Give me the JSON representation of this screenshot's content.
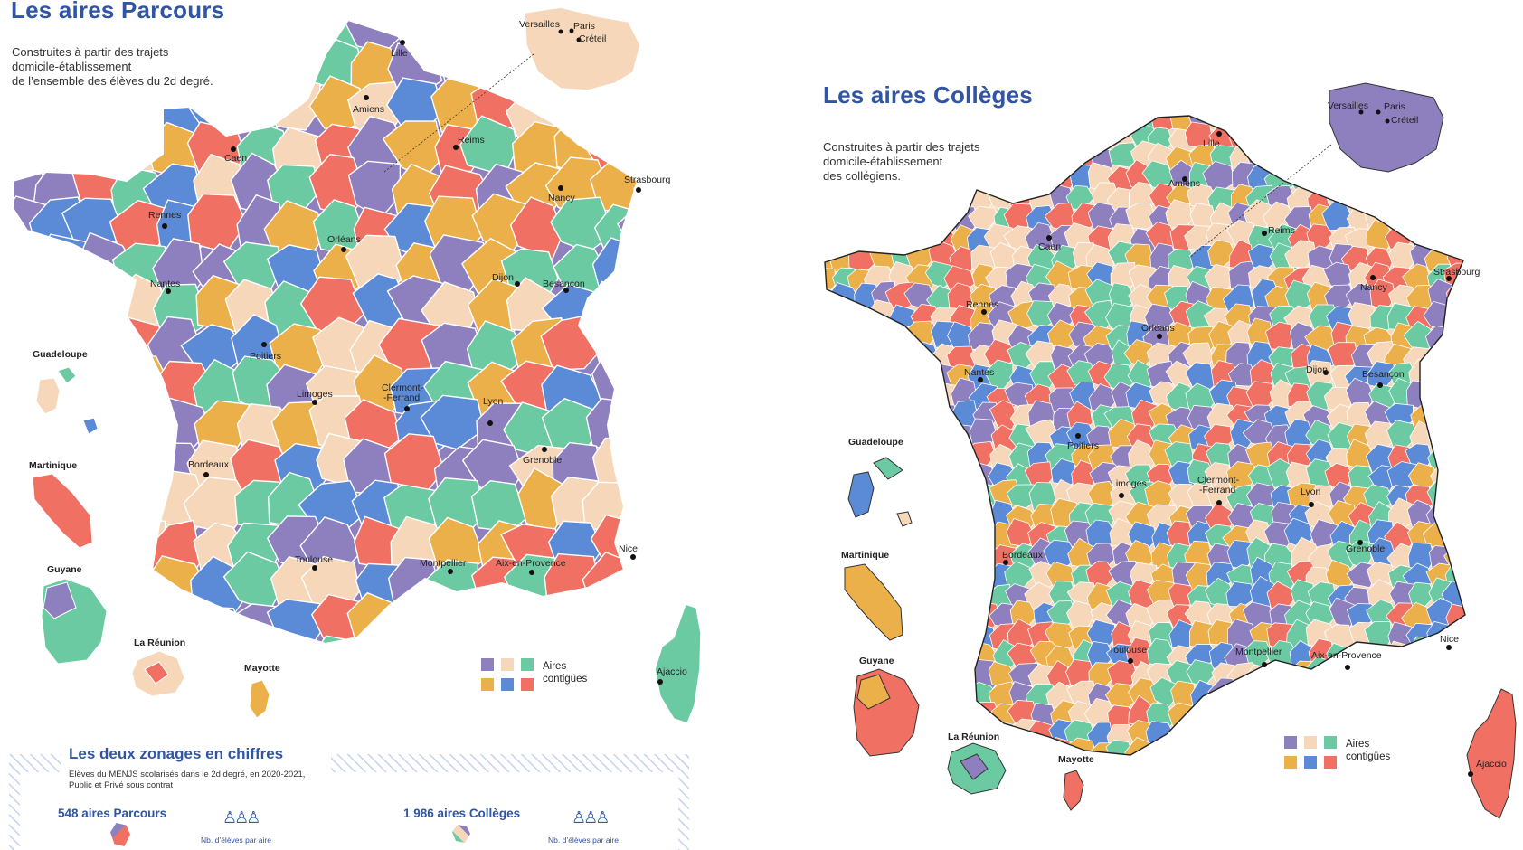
{
  "left": {
    "title": "Les aires Parcours",
    "subtitle": [
      "Construites à partir des trajets",
      "domicile-établissement",
      "de l’ensemble des élèves du 2d degré."
    ],
    "cities": [
      {
        "name": "Lille"
      },
      {
        "name": "Amiens"
      },
      {
        "name": "Caen"
      },
      {
        "name": "Reims"
      },
      {
        "name": "Strasbourg"
      },
      {
        "name": "Nancy"
      },
      {
        "name": "Rennes"
      },
      {
        "name": "Orléans"
      },
      {
        "name": "Nantes"
      },
      {
        "name": "Dijon"
      },
      {
        "name": "Besançon"
      },
      {
        "name": "Poitiers"
      },
      {
        "name": "Limoges"
      },
      {
        "name": "Clermont-"
      },
      {
        "name": "-Ferrand"
      },
      {
        "name": "Lyon"
      },
      {
        "name": "Bordeaux"
      },
      {
        "name": "Grenoble"
      },
      {
        "name": "Toulouse"
      },
      {
        "name": "Montpellier"
      },
      {
        "name": "Aix-en-Provence"
      },
      {
        "name": "Nice"
      },
      {
        "name": "Ajaccio"
      }
    ],
    "inset_cities": [
      {
        "name": "Versailles"
      },
      {
        "name": "Paris"
      },
      {
        "name": "Créteil"
      }
    ],
    "overseas": [
      {
        "name": "Guadeloupe"
      },
      {
        "name": "Martinique"
      },
      {
        "name": "Guyane"
      },
      {
        "name": "La Réunion"
      },
      {
        "name": "Mayotte"
      }
    ],
    "legend": [
      "Aires",
      "contigües"
    ]
  },
  "right": {
    "title": "Les aires Collèges",
    "subtitle": [
      "Construites à partir des trajets",
      "domicile-établissement",
      "des collégiens."
    ],
    "cities": [
      {
        "name": "Lille"
      },
      {
        "name": "Amiens"
      },
      {
        "name": "Caen"
      },
      {
        "name": "Reims"
      },
      {
        "name": "Strasbourg"
      },
      {
        "name": "Nancy"
      },
      {
        "name": "Rennes"
      },
      {
        "name": "Orléans"
      },
      {
        "name": "Nantes"
      },
      {
        "name": "Dijon"
      },
      {
        "name": "Besançon"
      },
      {
        "name": "Poitiers"
      },
      {
        "name": "Limoges"
      },
      {
        "name": "Clermont-"
      },
      {
        "name": "-Ferrand"
      },
      {
        "name": "Lyon"
      },
      {
        "name": "Bordeaux"
      },
      {
        "name": "Grenoble"
      },
      {
        "name": "Toulouse"
      },
      {
        "name": "Montpellier"
      },
      {
        "name": "Aix-en-Provence"
      },
      {
        "name": "Nice"
      },
      {
        "name": "Ajaccio"
      }
    ],
    "inset_cities": [
      {
        "name": "Versailles"
      },
      {
        "name": "Paris"
      },
      {
        "name": "Créteil"
      }
    ],
    "overseas": [
      {
        "name": "Guadeloupe"
      },
      {
        "name": "Martinique"
      },
      {
        "name": "Guyane"
      },
      {
        "name": "La Réunion"
      },
      {
        "name": "Mayotte"
      }
    ],
    "legend": [
      "Aires",
      "contigües"
    ]
  },
  "palette": [
    "#8e7fbf",
    "#f7d7b9",
    "#6ccaa2",
    "#ebb04a",
    "#5b8ad6",
    "#f07163"
  ],
  "stats": {
    "title": "Les deux zonages en chiffres",
    "desc": [
      "Élèves du MENJS scolarisés dans le 2d degré, en 2020-2021,",
      "Public et Privé sous contrat"
    ],
    "parcours": "548 aires Parcours",
    "colleges": "1 986 aires Collèges",
    "per_area": "Nb. d’élèves par aire"
  }
}
